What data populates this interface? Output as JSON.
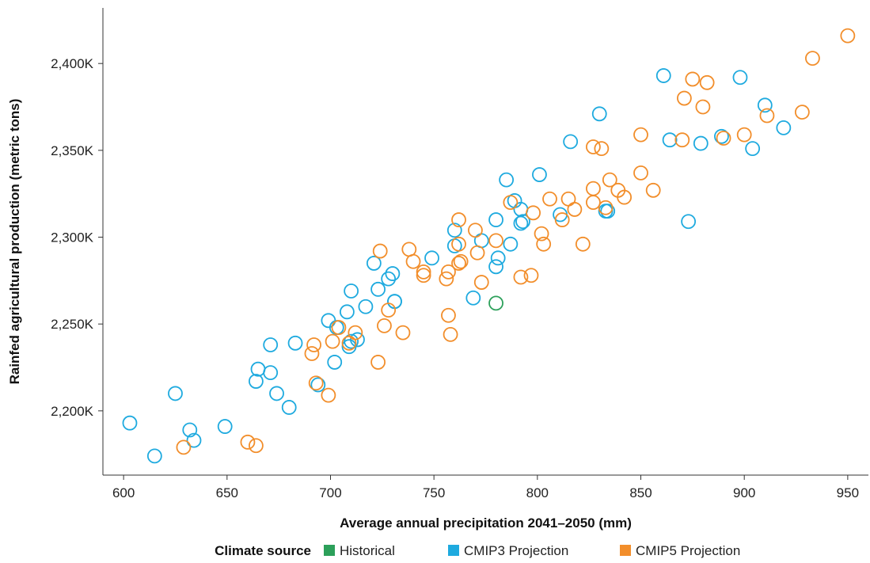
{
  "chart_data": {
    "type": "scatter",
    "title": "",
    "xlabel": "Average annual precipitation 2041–2050 (mm)",
    "ylabel": "Rainfed agricultural production (metric tons)",
    "xlim": [
      590,
      960
    ],
    "ylim": [
      2163000,
      2432000
    ],
    "x_ticks": [
      600,
      650,
      700,
      750,
      800,
      850,
      900,
      950
    ],
    "x_tick_labels": [
      "600",
      "650",
      "700",
      "750",
      "800",
      "850",
      "900",
      "950"
    ],
    "y_ticks": [
      2200000,
      2250000,
      2300000,
      2350000,
      2400000
    ],
    "y_tick_labels": [
      "2,200K",
      "2,250K",
      "2,300K",
      "2,350K",
      "2,400K"
    ],
    "grid": false,
    "marker": "open-circle",
    "legend": {
      "title": "Climate source",
      "placement": "bottom-center",
      "entries": [
        {
          "label": "Historical",
          "color": "#2ca05a"
        },
        {
          "label": "CMIP3 Projection",
          "color": "#1eaadf"
        },
        {
          "label": "CMIP5 Projection",
          "color": "#f28e2b"
        }
      ]
    },
    "series": [
      {
        "name": "Historical",
        "color": "#2ca05a",
        "points": [
          [
            780,
            2262000
          ]
        ]
      },
      {
        "name": "CMIP3 Projection",
        "color": "#1eaadf",
        "points": [
          [
            603,
            2193000
          ],
          [
            615,
            2174000
          ],
          [
            625,
            2210000
          ],
          [
            632,
            2189000
          ],
          [
            634,
            2183000
          ],
          [
            649,
            2191000
          ],
          [
            664,
            2217000
          ],
          [
            665,
            2224000
          ],
          [
            671,
            2238000
          ],
          [
            671,
            2222000
          ],
          [
            674,
            2210000
          ],
          [
            680,
            2202000
          ],
          [
            683,
            2239000
          ],
          [
            694,
            2215000
          ],
          [
            699,
            2252000
          ],
          [
            702,
            2228000
          ],
          [
            703,
            2248000
          ],
          [
            708,
            2257000
          ],
          [
            709,
            2237000
          ],
          [
            710,
            2240000
          ],
          [
            710,
            2269000
          ],
          [
            713,
            2241000
          ],
          [
            717,
            2260000
          ],
          [
            721,
            2285000
          ],
          [
            723,
            2270000
          ],
          [
            728,
            2276000
          ],
          [
            730,
            2279000
          ],
          [
            731,
            2263000
          ],
          [
            731,
            2263000
          ],
          [
            749,
            2288000
          ],
          [
            760,
            2295000
          ],
          [
            760,
            2304000
          ],
          [
            769,
            2265000
          ],
          [
            773,
            2298000
          ],
          [
            780,
            2283000
          ],
          [
            780,
            2310000
          ],
          [
            781,
            2288000
          ],
          [
            785,
            2333000
          ],
          [
            787,
            2296000
          ],
          [
            789,
            2321000
          ],
          [
            792,
            2308000
          ],
          [
            792,
            2316000
          ],
          [
            793,
            2309000
          ],
          [
            801,
            2336000
          ],
          [
            811,
            2313000
          ],
          [
            816,
            2355000
          ],
          [
            830,
            2371000
          ],
          [
            833,
            2315000
          ],
          [
            834,
            2315000
          ],
          [
            861,
            2393000
          ],
          [
            864,
            2356000
          ],
          [
            873,
            2309000
          ],
          [
            879,
            2354000
          ],
          [
            889,
            2358000
          ],
          [
            898,
            2392000
          ],
          [
            904,
            2351000
          ],
          [
            910,
            2376000
          ],
          [
            919,
            2363000
          ]
        ]
      },
      {
        "name": "CMIP5 Projection",
        "color": "#f28e2b",
        "points": [
          [
            629,
            2179000
          ],
          [
            660,
            2182000
          ],
          [
            664,
            2180000
          ],
          [
            691,
            2233000
          ],
          [
            692,
            2238000
          ],
          [
            693,
            2216000
          ],
          [
            699,
            2209000
          ],
          [
            701,
            2240000
          ],
          [
            704,
            2248000
          ],
          [
            709,
            2239000
          ],
          [
            712,
            2245000
          ],
          [
            723,
            2228000
          ],
          [
            724,
            2292000
          ],
          [
            726,
            2249000
          ],
          [
            728,
            2258000
          ],
          [
            735,
            2245000
          ],
          [
            738,
            2293000
          ],
          [
            740,
            2286000
          ],
          [
            745,
            2280000
          ],
          [
            745,
            2278000
          ],
          [
            756,
            2276000
          ],
          [
            757,
            2280000
          ],
          [
            757,
            2255000
          ],
          [
            758,
            2244000
          ],
          [
            762,
            2296000
          ],
          [
            762,
            2310000
          ],
          [
            762,
            2285000
          ],
          [
            763,
            2286000
          ],
          [
            770,
            2304000
          ],
          [
            771,
            2291000
          ],
          [
            773,
            2274000
          ],
          [
            780,
            2298000
          ],
          [
            787,
            2320000
          ],
          [
            792,
            2277000
          ],
          [
            797,
            2278000
          ],
          [
            798,
            2314000
          ],
          [
            802,
            2302000
          ],
          [
            803,
            2296000
          ],
          [
            806,
            2322000
          ],
          [
            812,
            2310000
          ],
          [
            815,
            2322000
          ],
          [
            818,
            2316000
          ],
          [
            822,
            2296000
          ],
          [
            827,
            2352000
          ],
          [
            827,
            2320000
          ],
          [
            827,
            2328000
          ],
          [
            831,
            2351000
          ],
          [
            833,
            2317000
          ],
          [
            835,
            2333000
          ],
          [
            839,
            2327000
          ],
          [
            842,
            2323000
          ],
          [
            850,
            2359000
          ],
          [
            850,
            2337000
          ],
          [
            856,
            2327000
          ],
          [
            870,
            2356000
          ],
          [
            871,
            2380000
          ],
          [
            875,
            2391000
          ],
          [
            880,
            2375000
          ],
          [
            882,
            2389000
          ],
          [
            890,
            2357000
          ],
          [
            900,
            2359000
          ],
          [
            911,
            2370000
          ],
          [
            928,
            2372000
          ],
          [
            933,
            2403000
          ],
          [
            950,
            2416000
          ]
        ]
      }
    ]
  }
}
